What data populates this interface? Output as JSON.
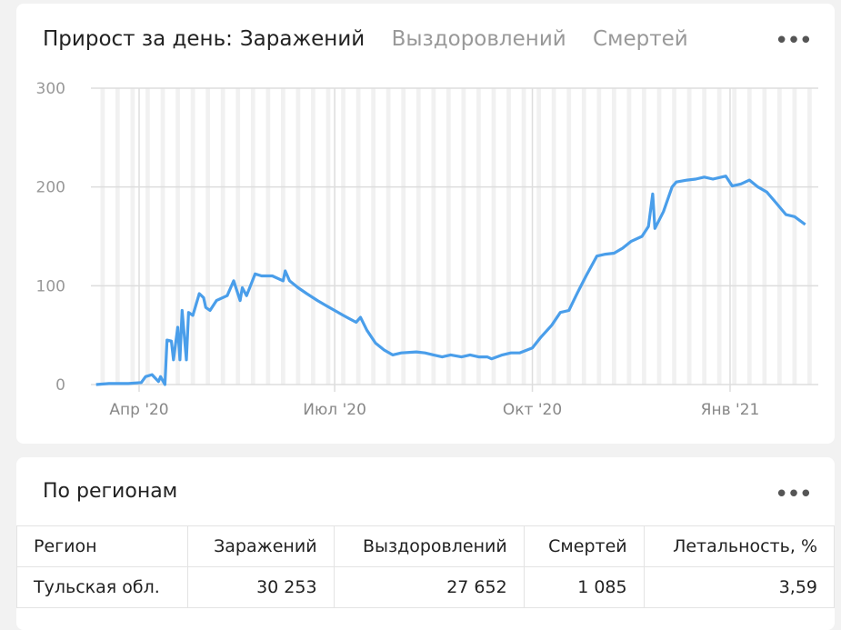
{
  "tabs": {
    "label": "Прирост за день:",
    "items": [
      "Заражений",
      "Выздоровлений",
      "Смертей"
    ],
    "active": 0
  },
  "regions": {
    "title": "По регионам",
    "headers": [
      "Регион",
      "Заражений",
      "Выздоровлений",
      "Смертей",
      "Летальность, %"
    ],
    "rows": [
      [
        "Тульская обл.",
        "30 253",
        "27 652",
        "1 085",
        "3,59"
      ]
    ]
  },
  "chart_data": {
    "type": "line",
    "title": "",
    "xlabel": "",
    "ylabel": "",
    "ylim": [
      0,
      300
    ],
    "yticks": [
      0,
      100,
      200,
      300
    ],
    "xticks": [
      {
        "date": "2020-04-01",
        "label": "Апр '20"
      },
      {
        "date": "2020-07-01",
        "label": "Июл '20"
      },
      {
        "date": "2020-10-01",
        "label": "Окт '20"
      },
      {
        "date": "2021-01-01",
        "label": "Янв '21"
      }
    ],
    "grid": true,
    "color": "#4a9eea",
    "series": [
      {
        "points": [
          [
            "2020-03-12",
            0
          ],
          [
            "2020-03-18",
            1
          ],
          [
            "2020-03-27",
            1
          ],
          [
            "2020-04-02",
            2
          ],
          [
            "2020-04-04",
            8
          ],
          [
            "2020-04-07",
            10
          ],
          [
            "2020-04-10",
            3
          ],
          [
            "2020-04-11",
            8
          ],
          [
            "2020-04-13",
            0
          ],
          [
            "2020-04-14",
            45
          ],
          [
            "2020-04-16",
            44
          ],
          [
            "2020-04-17",
            25
          ],
          [
            "2020-04-19",
            58
          ],
          [
            "2020-04-20",
            25
          ],
          [
            "2020-04-21",
            75
          ],
          [
            "2020-04-23",
            25
          ],
          [
            "2020-04-24",
            73
          ],
          [
            "2020-04-26",
            70
          ],
          [
            "2020-04-29",
            92
          ],
          [
            "2020-05-01",
            88
          ],
          [
            "2020-05-02",
            78
          ],
          [
            "2020-05-04",
            75
          ],
          [
            "2020-05-07",
            85
          ],
          [
            "2020-05-12",
            90
          ],
          [
            "2020-05-15",
            105
          ],
          [
            "2020-05-18",
            85
          ],
          [
            "2020-05-19",
            98
          ],
          [
            "2020-05-21",
            90
          ],
          [
            "2020-05-25",
            112
          ],
          [
            "2020-05-28",
            110
          ],
          [
            "2020-06-02",
            110
          ],
          [
            "2020-06-07",
            105
          ],
          [
            "2020-06-08",
            115
          ],
          [
            "2020-06-10",
            105
          ],
          [
            "2020-06-14",
            98
          ],
          [
            "2020-06-18",
            92
          ],
          [
            "2020-06-23",
            85
          ],
          [
            "2020-06-27",
            80
          ],
          [
            "2020-07-01",
            75
          ],
          [
            "2020-07-05",
            70
          ],
          [
            "2020-07-11",
            63
          ],
          [
            "2020-07-13",
            68
          ],
          [
            "2020-07-16",
            55
          ],
          [
            "2020-07-20",
            42
          ],
          [
            "2020-07-24",
            35
          ],
          [
            "2020-07-28",
            30
          ],
          [
            "2020-08-01",
            32
          ],
          [
            "2020-08-08",
            33
          ],
          [
            "2020-08-12",
            32
          ],
          [
            "2020-08-16",
            30
          ],
          [
            "2020-08-20",
            28
          ],
          [
            "2020-08-24",
            30
          ],
          [
            "2020-08-29",
            28
          ],
          [
            "2020-09-02",
            30
          ],
          [
            "2020-09-06",
            28
          ],
          [
            "2020-09-10",
            28
          ],
          [
            "2020-09-12",
            26
          ],
          [
            "2020-09-17",
            30
          ],
          [
            "2020-09-21",
            32
          ],
          [
            "2020-09-25",
            32
          ],
          [
            "2020-10-01",
            37
          ],
          [
            "2020-10-05",
            48
          ],
          [
            "2020-10-10",
            60
          ],
          [
            "2020-10-14",
            73
          ],
          [
            "2020-10-18",
            75
          ],
          [
            "2020-10-22",
            93
          ],
          [
            "2020-10-26",
            110
          ],
          [
            "2020-10-31",
            130
          ],
          [
            "2020-11-04",
            132
          ],
          [
            "2020-11-08",
            133
          ],
          [
            "2020-11-12",
            138
          ],
          [
            "2020-11-16",
            145
          ],
          [
            "2020-11-21",
            150
          ],
          [
            "2020-11-24",
            160
          ],
          [
            "2020-11-26",
            193
          ],
          [
            "2020-11-27",
            158
          ],
          [
            "2020-12-01",
            175
          ],
          [
            "2020-12-05",
            200
          ],
          [
            "2020-12-07",
            205
          ],
          [
            "2020-12-12",
            207
          ],
          [
            "2020-12-16",
            208
          ],
          [
            "2020-12-20",
            210
          ],
          [
            "2020-12-24",
            208
          ],
          [
            "2020-12-28",
            210
          ],
          [
            "2020-12-30",
            211
          ],
          [
            "2021-01-02",
            201
          ],
          [
            "2021-01-06",
            203
          ],
          [
            "2021-01-10",
            207
          ],
          [
            "2021-01-14",
            200
          ],
          [
            "2021-01-18",
            195
          ],
          [
            "2021-01-22",
            185
          ],
          [
            "2021-01-27",
            172
          ],
          [
            "2021-01-31",
            170
          ],
          [
            "2021-02-05",
            162
          ]
        ]
      }
    ]
  }
}
